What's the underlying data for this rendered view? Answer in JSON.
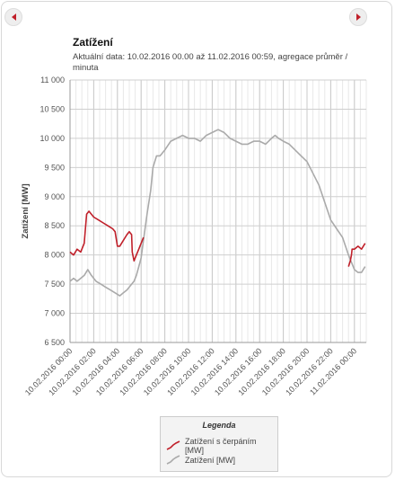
{
  "nav": {
    "prev_icon": "chevron-left-icon",
    "next_icon": "chevron-right-icon",
    "accent": "#c0202a"
  },
  "header": {
    "title": "Zatížení",
    "subtitle": "Aktuální data: 10.02.2016 00.00 až 11.02.2016 00:59, agregace průměr / minuta"
  },
  "legend": {
    "title": "Legenda",
    "items": [
      {
        "label": "Zatížení s čerpáním [MW]",
        "color": "#c0202a"
      },
      {
        "label": "Zatížení [MW]",
        "color": "#aaaaaa"
      }
    ]
  },
  "chart_data": {
    "type": "line",
    "ylabel": "Zatížení [MW]",
    "ylim": [
      6500,
      11000
    ],
    "yticks": [
      6500,
      7000,
      7500,
      8000,
      8500,
      9000,
      9500,
      10000,
      10500,
      11000
    ],
    "ytick_labels": [
      "6 500",
      "7 000",
      "7 500",
      "8 000",
      "8 500",
      "9 000",
      "9 500",
      "10 000",
      "10 500",
      "11 000"
    ],
    "xlim_hours": [
      0,
      25
    ],
    "xticks_hours": [
      0,
      2,
      4,
      6,
      8,
      10,
      12,
      14,
      16,
      18,
      20,
      22,
      24
    ],
    "xtick_labels": [
      "10.02.2016 00:00",
      "10.02.2016 02:00",
      "10.02.2016 04:00",
      "10.02.2016 06:00",
      "10.02.2016 08:00",
      "10.02.2016 10:00",
      "10.02.2016 12:00",
      "10.02.2016 14:00",
      "10.02.2016 16:00",
      "10.02.2016 18:00",
      "10.02.2016 20:00",
      "10.02.2016 22:00",
      "11.02.2016 00:00"
    ],
    "grid": true,
    "legend_position": "bottom-center",
    "series": [
      {
        "name": "Zatížení s čerpáním [MW]",
        "color": "#c0202a",
        "x": [
          0,
          0.3,
          0.6,
          0.9,
          1.2,
          1.4,
          1.6,
          2.0,
          2.4,
          2.8,
          3.2,
          3.6,
          3.8,
          4.0,
          4.2,
          4.5,
          4.8,
          5.0,
          5.2,
          5.25,
          5.4,
          5.6,
          5.8,
          6.0,
          6.2
        ],
        "y": [
          8050,
          8000,
          8100,
          8050,
          8200,
          8700,
          8750,
          8650,
          8600,
          8550,
          8500,
          8450,
          8400,
          8150,
          8150,
          8250,
          8350,
          8400,
          8350,
          8050,
          7900,
          8000,
          8100,
          8200,
          8300
        ]
      },
      {
        "name": "Zatížení s čerpáním [MW]",
        "color": "#c0202a",
        "x": [
          23.5,
          23.65,
          23.75,
          23.8,
          24.0,
          24.3,
          24.6,
          24.9
        ],
        "y": [
          7800,
          7900,
          8000,
          8100,
          8100,
          8150,
          8100,
          8200
        ]
      },
      {
        "name": "Zatížení [MW]",
        "color": "#aaaaaa",
        "x": [
          0,
          0.3,
          0.6,
          0.9,
          1.2,
          1.5,
          1.8,
          2.2,
          2.6,
          3.0,
          3.4,
          3.8,
          4.2,
          4.5,
          4.8,
          5.0,
          5.2,
          5.4,
          5.6,
          5.8,
          6.0,
          6.2,
          6.5,
          6.8,
          7.0,
          7.3,
          7.6,
          8.0,
          8.5,
          9.0,
          9.5,
          10.0,
          10.5,
          11.0,
          11.5,
          12.0,
          12.5,
          13.0,
          13.5,
          14.0,
          14.5,
          15.0,
          15.5,
          16.0,
          16.5,
          17.0,
          17.3,
          17.6,
          18.0,
          18.5,
          19.0,
          19.5,
          20.0,
          20.5,
          21.0,
          21.5,
          22.0,
          22.5,
          23.0,
          23.5,
          24.0,
          24.3,
          24.6,
          24.9
        ],
        "y": [
          7550,
          7600,
          7550,
          7600,
          7650,
          7750,
          7650,
          7550,
          7500,
          7450,
          7400,
          7350,
          7300,
          7350,
          7400,
          7450,
          7500,
          7550,
          7650,
          7800,
          7950,
          8250,
          8700,
          9100,
          9500,
          9700,
          9700,
          9800,
          9950,
          10000,
          10050,
          10000,
          10000,
          9950,
          10050,
          10100,
          10150,
          10100,
          10000,
          9950,
          9900,
          9900,
          9950,
          9950,
          9900,
          10000,
          10050,
          10000,
          9950,
          9900,
          9800,
          9700,
          9600,
          9400,
          9200,
          8900,
          8600,
          8450,
          8300,
          8000,
          7750,
          7700,
          7700,
          7800
        ]
      }
    ]
  }
}
